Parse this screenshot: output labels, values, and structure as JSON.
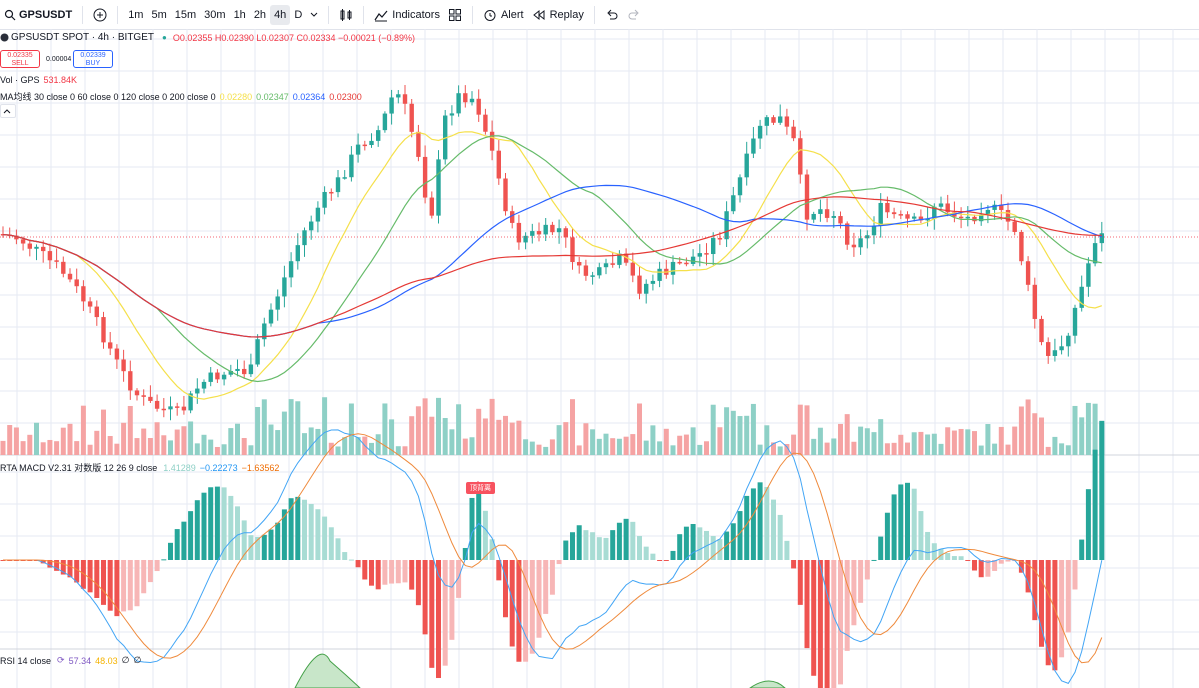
{
  "toolbar": {
    "symbol": "GPSUSDT",
    "intervals": [
      "1m",
      "5m",
      "15m",
      "30m",
      "1h",
      "2h",
      "4h",
      "D"
    ],
    "active_interval": "4h",
    "indicators_label": "Indicators",
    "alert_label": "Alert",
    "replay_label": "Replay"
  },
  "header": {
    "title": "GPSUSDT SPOT · 4h · BITGET",
    "ohlc": "O0.02355 H0.02390 L0.02307 C0.02334 −0.00021 (−0.89%)",
    "sell_price": "0.02335",
    "sell_label": "SELL",
    "spread": "0.00004",
    "buy_price": "0.02339",
    "buy_label": "BUY"
  },
  "volume_legend": {
    "label": "Vol · GPS",
    "value": "531.84K"
  },
  "ma_legend": {
    "label": "MA均线 30 close 0 60 close 0 120 close 0 200 close 0",
    "values": [
      "0.02280",
      "0.02347",
      "0.02364",
      "0.02300"
    ],
    "colors": [
      "#f5e04b",
      "#66bb6a",
      "#2962ff",
      "#e53935"
    ]
  },
  "macd_legend": {
    "label": "RTA MACD V2.31 对数版 12 26 9 close",
    "values": [
      "1.41289",
      "−0.22273",
      "−1.63562"
    ]
  },
  "macd_badge": "顶背离",
  "rsi_legend": {
    "label": "RSI 14 close",
    "values": [
      "57.34",
      "48.03",
      "∅",
      "∅"
    ]
  },
  "colors": {
    "up": "#26a69a",
    "down": "#ef5350",
    "vol_up": "#8ed0c6",
    "vol_down": "#f5a3a3",
    "bg": "#ffffff",
    "grid": "#e6eaf3"
  }
}
